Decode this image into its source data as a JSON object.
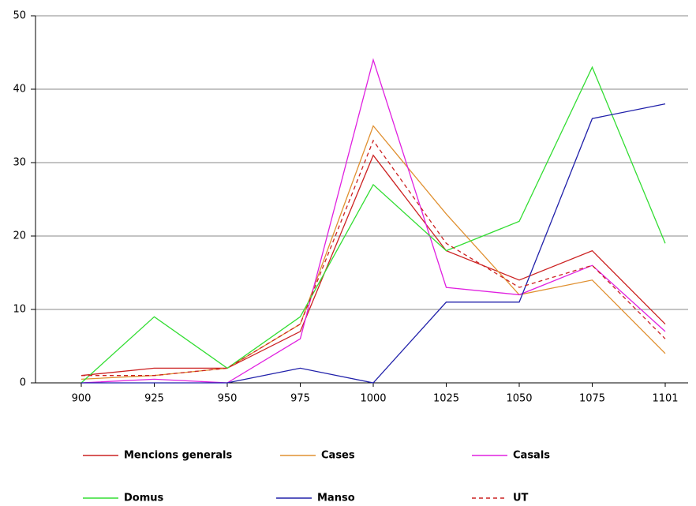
{
  "chart_data": {
    "type": "line",
    "categories": [
      "900",
      "925",
      "950",
      "975",
      "1000",
      "1025",
      "1050",
      "1075",
      "1101"
    ],
    "ylim": [
      0,
      50
    ],
    "yticks": [
      0,
      10,
      20,
      30,
      40,
      50
    ],
    "grid": true,
    "series": [
      {
        "name": "Mencions generals",
        "color": "#cc2222",
        "values": [
          1,
          2,
          2,
          7,
          31,
          18,
          14,
          18,
          8
        ]
      },
      {
        "name": "Cases",
        "color": "#e09030",
        "values": [
          0.5,
          1,
          2,
          8,
          35,
          23,
          12,
          14,
          4
        ]
      },
      {
        "name": "Casals",
        "color": "#e020e0",
        "values": [
          0,
          0.5,
          0,
          6,
          44,
          13,
          12,
          16,
          7
        ]
      },
      {
        "name": "Domus",
        "color": "#33dd33",
        "values": [
          0,
          9,
          2,
          9,
          27,
          18,
          22,
          43,
          19
        ]
      },
      {
        "name": "Manso",
        "color": "#2020aa",
        "values": [
          0,
          0,
          0,
          2,
          0,
          11,
          11,
          36,
          38
        ]
      },
      {
        "name": "UT",
        "color": "#cc2222",
        "dashed": true,
        "values": [
          1,
          1,
          2,
          8,
          33,
          19,
          13,
          16,
          6
        ]
      }
    ]
  }
}
